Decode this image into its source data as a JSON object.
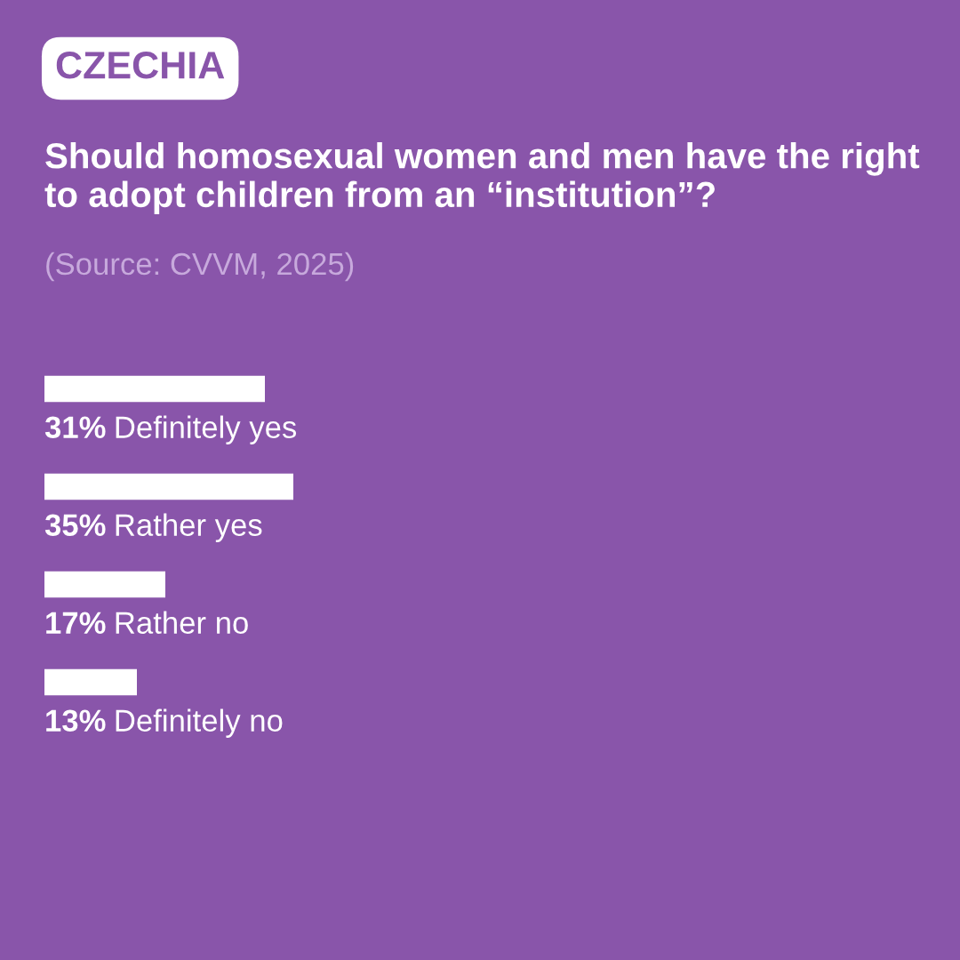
{
  "chart_data": {
    "type": "bar",
    "orientation": "horizontal",
    "title": "Should homosexual women and men have the right to adopt children from an “institution”?",
    "annotations": [
      "CZECHIA",
      "(Source: CVVM, 2025)"
    ],
    "categories": [
      "Definitely yes",
      "Rather yes",
      "Rather no",
      "Definitely no"
    ],
    "values": [
      31,
      35,
      17,
      13
    ],
    "value_labels": [
      "31%",
      "35%",
      "17%",
      "13%"
    ],
    "color": "#ffffff",
    "tick_labels": false
  }
}
